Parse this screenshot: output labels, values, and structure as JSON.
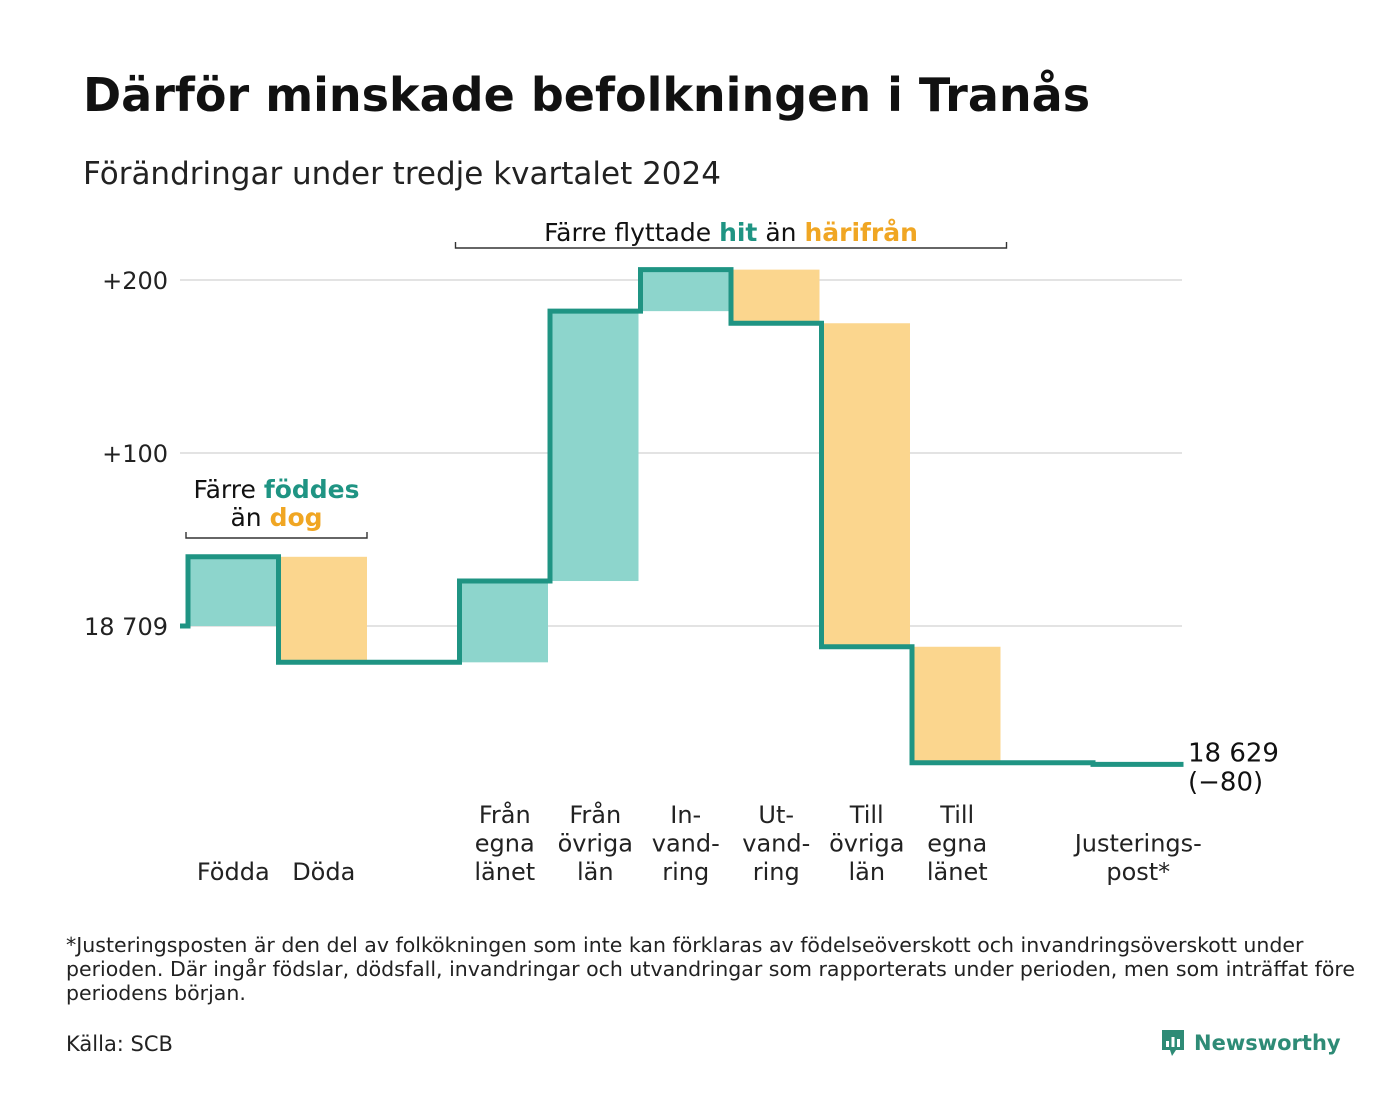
{
  "title": "Därför minskade befolkningen i Tranås",
  "subtitle": "Förändringar under tredje kvartalet 2024",
  "footnote": "*Justeringsposten är den del av folkökningen som inte kan förklaras av födelseöverskott och invandringsöverskott under perioden. Där ingår födslar, dödsfall, invandringar och utvandringar som rapporterats under perioden, men som inträffat före periodens början.",
  "source": "Källa: SCB",
  "brand": "Newsworthy",
  "colors": {
    "increase": "#8dd5cc",
    "decrease": "#fbd68e",
    "line": "#1f9483",
    "accent_teal": "#1f9483",
    "accent_orange": "#f0a623",
    "grid": "#e3e3e3"
  },
  "chart_data": {
    "type": "waterfall",
    "baseline": 18709,
    "ylim": [
      -80,
      200
    ],
    "y_ticks": [
      {
        "value": 0,
        "label": "18 709"
      },
      {
        "value": 100,
        "label": "+100"
      },
      {
        "value": 200,
        "label": "+200"
      }
    ],
    "steps": [
      {
        "id": "fodda",
        "label": [
          "Födda"
        ],
        "delta": 40,
        "kind": "increase"
      },
      {
        "id": "doda",
        "label": [
          "Döda"
        ],
        "delta": -61,
        "kind": "decrease"
      },
      {
        "id": "gap",
        "label": [],
        "delta": 0,
        "kind": "none"
      },
      {
        "id": "fran-egna",
        "label": [
          "Från",
          "egna",
          "länet"
        ],
        "delta": 47,
        "kind": "increase"
      },
      {
        "id": "fran-ovriga",
        "label": [
          "Från",
          "övriga",
          "län"
        ],
        "delta": 156,
        "kind": "increase"
      },
      {
        "id": "invandring",
        "label": [
          "In-",
          "vand-",
          "ring"
        ],
        "delta": 24,
        "kind": "increase"
      },
      {
        "id": "utvandring",
        "label": [
          "Ut-",
          "vand-",
          "ring"
        ],
        "delta": -31,
        "kind": "decrease"
      },
      {
        "id": "till-ovriga",
        "label": [
          "Till",
          "övriga",
          "län"
        ],
        "delta": -187,
        "kind": "decrease"
      },
      {
        "id": "till-egna",
        "label": [
          "Till",
          "egna",
          "länet"
        ],
        "delta": -67,
        "kind": "decrease"
      },
      {
        "id": "gap2",
        "label": [],
        "delta": 0,
        "kind": "none"
      },
      {
        "id": "justering",
        "label": [
          "Justerings-",
          "post*"
        ],
        "delta": -1,
        "kind": "adjust"
      }
    ],
    "end_label": "18 629",
    "end_change": "(−80)",
    "annotations": [
      {
        "id": "births",
        "line1_prefix": "Färre ",
        "line1_highlight": "föddes",
        "line2_prefix": "än ",
        "line2_highlight": "dog",
        "spans": [
          "fodda",
          "doda"
        ]
      },
      {
        "id": "moves",
        "line1_prefix": "Färre flyttade ",
        "line1_highlight": "hit",
        "line1_mid": " än ",
        "line1_highlight2": "härifrån",
        "spans": [
          "fran-egna",
          "till-egna"
        ]
      }
    ]
  }
}
